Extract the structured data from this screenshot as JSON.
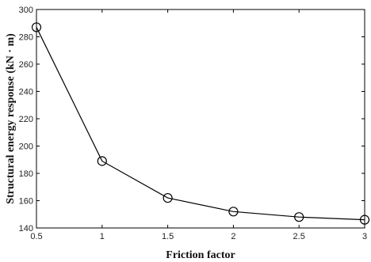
{
  "chart_data": {
    "type": "line",
    "title": "",
    "xlabel": "Friction factor",
    "ylabel": "Structural energy response (kN · m)",
    "xlim": [
      0.5,
      3
    ],
    "ylim": [
      140,
      300
    ],
    "xticks": [
      0.5,
      1,
      1.5,
      2,
      2.5,
      3
    ],
    "yticks": [
      140,
      160,
      180,
      200,
      220,
      240,
      260,
      280,
      300
    ],
    "grid": false,
    "marker": "circle",
    "series": [
      {
        "x": [
          0.5,
          1,
          1.5,
          2,
          2.5,
          3
        ],
        "values": [
          287,
          189,
          162,
          152,
          148,
          146
        ]
      }
    ]
  },
  "colors": {
    "line": "#000000",
    "axes": "#000000",
    "background": "#ffffff"
  }
}
